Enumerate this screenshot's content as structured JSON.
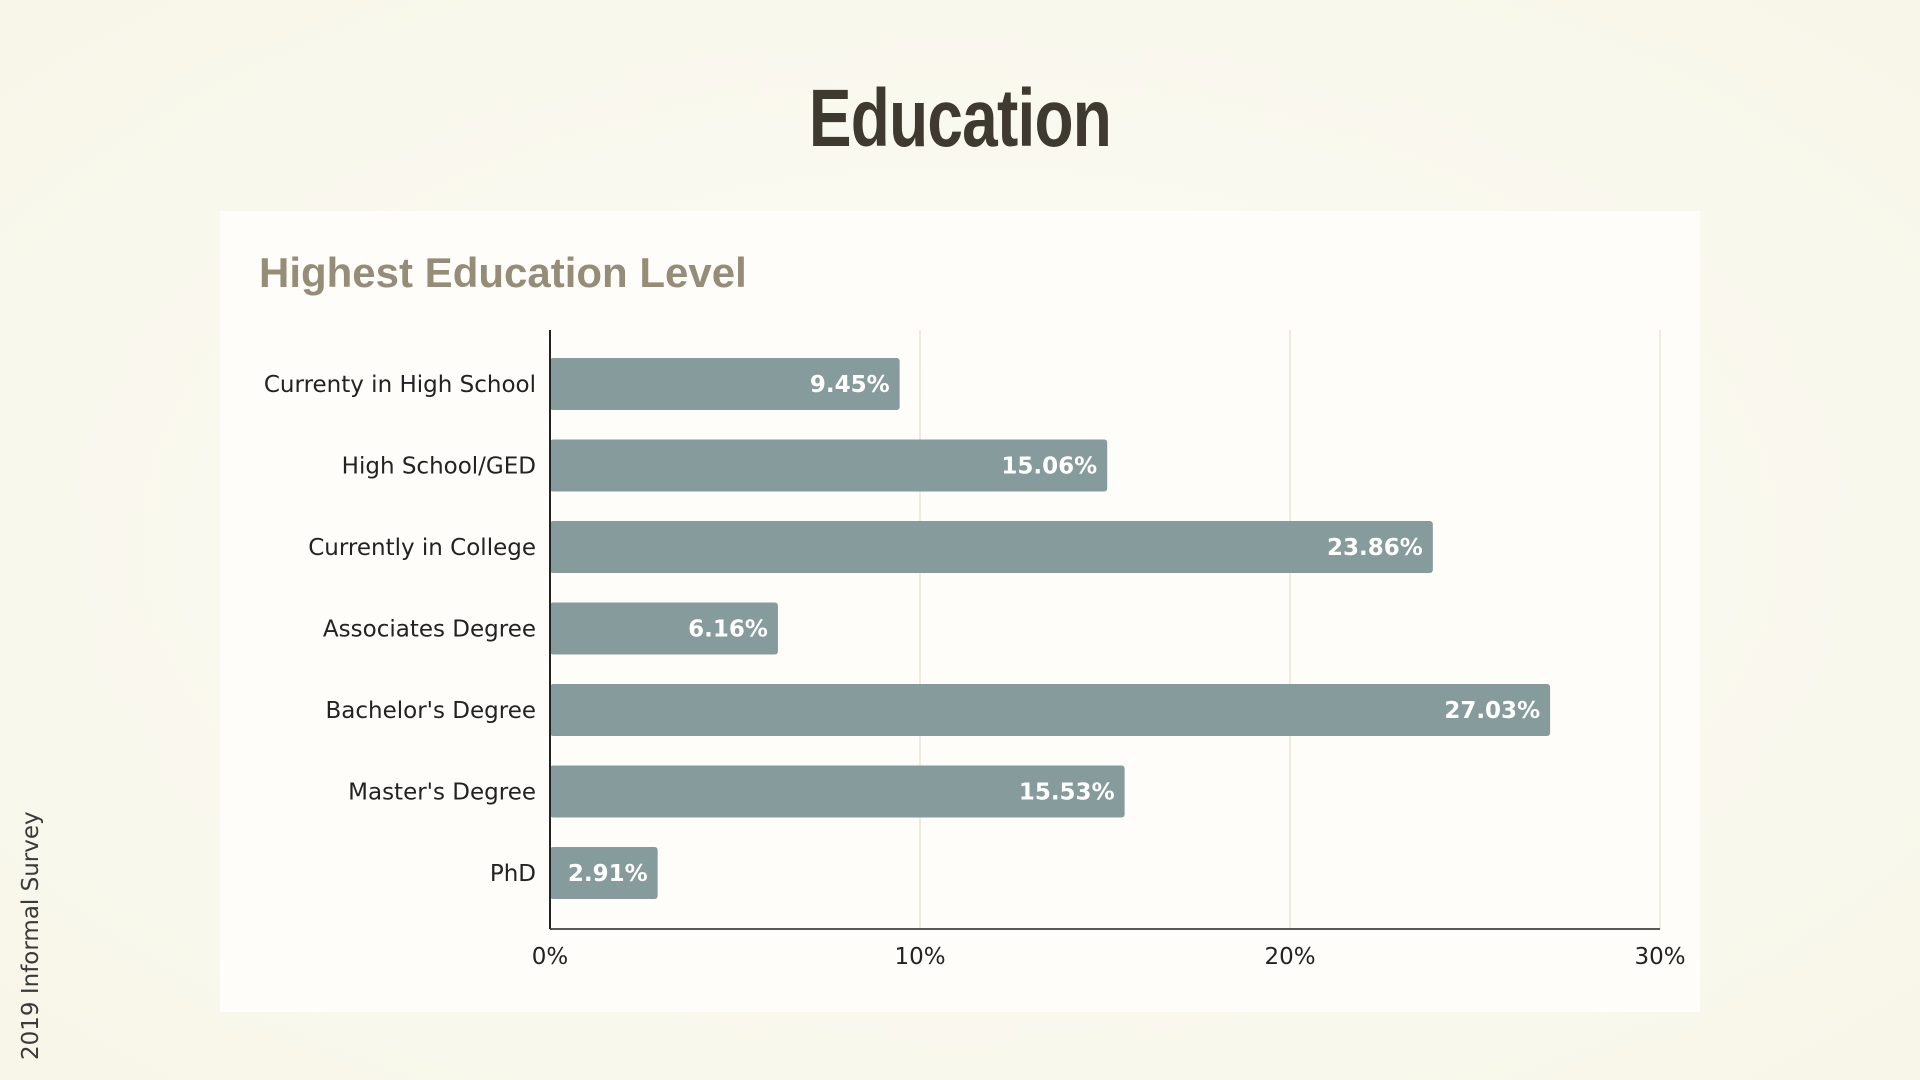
{
  "slide": {
    "title": "Education",
    "footer": "2019 Informal Survey"
  },
  "colors": {
    "bar": "#869b9b",
    "bar_label": "#ffffff",
    "gridline": "#ede3d4",
    "axis": "#222222",
    "chart_title": "#968d78",
    "slide_title": "#3f3a30"
  },
  "chart_data": {
    "type": "bar",
    "orientation": "horizontal",
    "title": "Highest Education Level",
    "categories": [
      "Currenty in High School",
      "High School/GED",
      "Currently in College",
      "Associates Degree",
      "Bachelor's Degree",
      "Master's Degree",
      "PhD"
    ],
    "values": [
      9.45,
      15.06,
      23.86,
      6.16,
      27.03,
      15.53,
      2.91
    ],
    "value_labels": [
      "9.45%",
      "15.06%",
      "23.86%",
      "6.16%",
      "27.03%",
      "15.53%",
      "2.91%"
    ],
    "xlim": [
      0,
      30
    ],
    "xticks": [
      0,
      10,
      20,
      30
    ],
    "xtick_labels": [
      "0%",
      "10%",
      "20%",
      "30%"
    ],
    "xlabel": "",
    "ylabel": "",
    "grid": "vertical",
    "legend": "none"
  }
}
